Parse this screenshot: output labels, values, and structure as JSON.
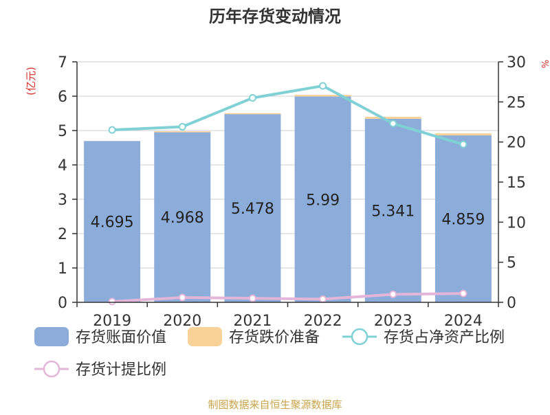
{
  "chart_data": {
    "type": "bar",
    "title": "历年存货变动情况",
    "left_axis_unit": "(亿元)",
    "right_axis_unit": "%",
    "categories": [
      "2019",
      "2020",
      "2021",
      "2022",
      "2023",
      "2024"
    ],
    "left_ylim": [
      0,
      7
    ],
    "left_ticks": [
      "0",
      "1",
      "2",
      "3",
      "4",
      "5",
      "6",
      "7"
    ],
    "right_ylim": [
      0,
      30
    ],
    "right_ticks": [
      "0",
      "5",
      "10",
      "15",
      "20",
      "25",
      "30"
    ],
    "grid": true,
    "legend_position": "bottom",
    "series": [
      {
        "name": "存货账面价值",
        "kind": "bar",
        "axis": "left",
        "color": "#8cacd9",
        "values": [
          4.695,
          4.968,
          5.478,
          5.99,
          5.341,
          4.859
        ],
        "labels": [
          "4.695",
          "4.968",
          "5.478",
          "5.99",
          "5.341",
          "4.859"
        ]
      },
      {
        "name": "存货跌价准备",
        "kind": "bar-stacked",
        "axis": "left",
        "color": "#f9d29a",
        "values": [
          0.0,
          0.01,
          0.03,
          0.05,
          0.06,
          0.06
        ]
      },
      {
        "name": "存货占净资产比例",
        "kind": "line",
        "axis": "right",
        "color": "#7fd1d6",
        "values": [
          21.5,
          21.9,
          25.5,
          27.0,
          22.3,
          19.7
        ]
      },
      {
        "name": "存货计提比例",
        "kind": "line",
        "axis": "right",
        "color": "#e3b5d9",
        "values": [
          0.1,
          0.6,
          0.5,
          0.4,
          1.0,
          1.1
        ]
      }
    ],
    "source": "制图数据来自恒生聚源数据库"
  }
}
